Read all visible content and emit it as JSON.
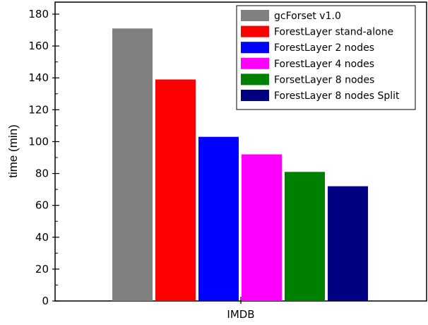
{
  "chart_data": {
    "type": "bar",
    "xlabel": "",
    "ylabel": "time (min)",
    "categories": [
      "IMDB"
    ],
    "ylim": [
      0,
      190
    ],
    "yticks": [
      0,
      20,
      40,
      60,
      80,
      100,
      120,
      140,
      160,
      180
    ],
    "grid": false,
    "legend_position": "top-right",
    "series": [
      {
        "name": "gcForset v1.0",
        "color": "#808080",
        "values": [
          171
        ]
      },
      {
        "name": "ForestLayer stand-alone",
        "color": "#ff0000",
        "values": [
          139
        ]
      },
      {
        "name": "ForestLayer 2 nodes",
        "color": "#0000ff",
        "values": [
          103
        ]
      },
      {
        "name": "ForestLayer 4 nodes",
        "color": "#ff00ff",
        "values": [
          92
        ]
      },
      {
        "name": "ForsetLayer 8 nodes",
        "color": "#008000",
        "values": [
          81
        ]
      },
      {
        "name": "ForestLayer 8 nodes Split",
        "color": "#000080",
        "values": [
          72
        ]
      }
    ]
  }
}
